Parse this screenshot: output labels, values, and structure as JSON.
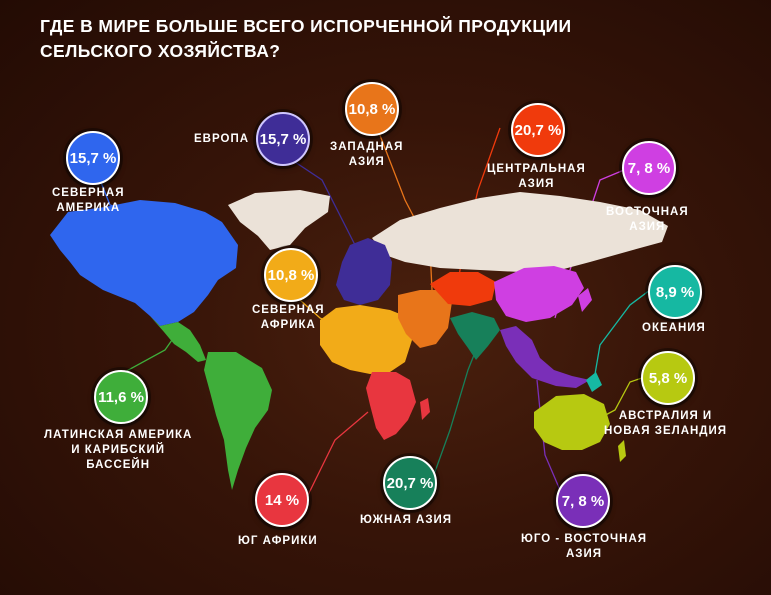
{
  "title": {
    "line1": "ГДЕ В МИРЕ БОЛЬШЕ ВСЕГО ИСПОРЧЕННОЙ ПРОДУКЦИИ",
    "line2": "СЕЛЬСКОГО ХОЗЯЙСТВА?"
  },
  "regions": {
    "north_america": {
      "value": "15,7 %",
      "label1": "СЕВЕРНАЯ",
      "label2": "АМЕРИКА",
      "color": "#2f66ee"
    },
    "europe": {
      "value": "15,7 %",
      "label1": "ЕВРОПА",
      "color": "#3f2d97"
    },
    "west_asia": {
      "value": "10,8 %",
      "label1": "ЗАПАДНАЯ",
      "label2": "АЗИЯ",
      "color": "#e8751a"
    },
    "central_asia": {
      "value": "20,7 %",
      "label1": "ЦЕНТРАЛЬНАЯ",
      "label2": "АЗИЯ",
      "color": "#f03a0c"
    },
    "east_asia": {
      "value": "7, 8 %",
      "label1": "ВОСТОЧНАЯ",
      "label2": "АЗИЯ",
      "color": "#cf3fe2"
    },
    "oceania": {
      "value": "8,9 %",
      "label1": "ОКЕАНИЯ",
      "color": "#16b8a2"
    },
    "australia_nz": {
      "value": "5,8 %",
      "label1": "АВСТРАЛИЯ И",
      "label2": "НОВАЯ ЗЕЛАНДИЯ",
      "color": "#b7c911"
    },
    "north_africa": {
      "value": "10,8 %",
      "label1": "СЕВЕРНАЯ",
      "label2": "АФРИКА",
      "color": "#f2ab18"
    },
    "latin_america": {
      "value": "11,6 %",
      "label1": "ЛАТИНСКАЯ АМЕРИКА",
      "label2": "И КАРИБСКИЙ",
      "label3": "БАССЕЙН",
      "color": "#3fae3a"
    },
    "south_africa": {
      "value": "14 %",
      "label1": "ЮГ АФРИКИ",
      "color": "#e8363f"
    },
    "south_asia": {
      "value": "20,7 %",
      "label1": "ЮЖНАЯ АЗИЯ",
      "color": "#17805a"
    },
    "southeast_asia": {
      "value": "7, 8 %",
      "label1": "ЮГО - ВОСТОЧНАЯ",
      "label2": "АЗИЯ",
      "color": "#7a2fb8"
    }
  },
  "map_colors": {
    "unassigned": "#ebe2d8"
  }
}
